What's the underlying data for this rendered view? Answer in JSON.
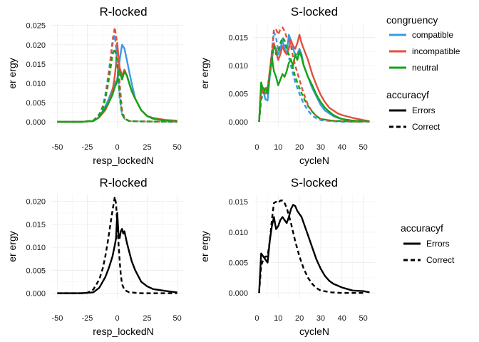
{
  "colors": {
    "compatible": "#3b9ae1",
    "incompatible": "#e2503f",
    "neutral": "#14a314",
    "black": "#000000"
  },
  "legend_top": {
    "congruency_title": "congruency",
    "congruency_items": [
      "compatible",
      "incompatible",
      "neutral"
    ],
    "accuracy_title": "accuracyf",
    "accuracy_items": [
      "Errors",
      "Correct"
    ]
  },
  "legend_bottom": {
    "accuracy_title": "accuracyf",
    "accuracy_items": [
      "Errors",
      "Correct"
    ]
  },
  "chart_data": [
    {
      "type": "line",
      "title": "R-locked",
      "xlabel": "resp_lockedN",
      "ylabel": "er ergy",
      "xlim": [
        -55,
        55
      ],
      "ylim": [
        -0.0013,
        0.0255
      ],
      "xticks": [
        -50,
        -25,
        0,
        25,
        50
      ],
      "yticks": [
        0.0,
        0.005,
        0.01,
        0.015,
        0.02,
        0.025
      ],
      "ytick_labels": [
        "0.000",
        "0.005",
        "0.010",
        "0.015",
        "0.020",
        "0.025"
      ],
      "series": [
        {
          "group": "compatible",
          "accuracy": "Errors",
          "x": [
            -50,
            -30,
            -20,
            -15,
            -10,
            -7,
            -4,
            -2,
            0,
            2,
            4,
            6,
            8,
            10,
            12,
            15,
            20,
            25,
            30,
            40,
            50
          ],
          "y": [
            0,
            0,
            0.0002,
            0.0012,
            0.004,
            0.006,
            0.0085,
            0.01,
            0.011,
            0.016,
            0.02,
            0.019,
            0.016,
            0.013,
            0.01,
            0.006,
            0.003,
            0.0015,
            0.0008,
            0.0003,
            0.0002
          ]
        },
        {
          "group": "incompatible",
          "accuracy": "Errors",
          "x": [
            -50,
            -30,
            -20,
            -15,
            -10,
            -7,
            -4,
            -2,
            -1,
            0,
            1,
            2,
            4,
            6,
            8,
            10,
            12,
            15,
            20,
            25,
            30,
            40,
            50
          ],
          "y": [
            0,
            0,
            0.0002,
            0.0012,
            0.003,
            0.005,
            0.008,
            0.012,
            0.015,
            0.0205,
            0.017,
            0.014,
            0.012,
            0.0135,
            0.012,
            0.01,
            0.008,
            0.006,
            0.003,
            0.0015,
            0.001,
            0.0005,
            0.0003
          ]
        },
        {
          "group": "neutral",
          "accuracy": "Errors",
          "x": [
            -50,
            -30,
            -20,
            -15,
            -10,
            -7,
            -4,
            -2,
            0,
            1,
            2,
            4,
            6,
            8,
            10,
            12,
            15,
            20,
            25,
            30,
            40,
            50
          ],
          "y": [
            0,
            0,
            0.0002,
            0.0012,
            0.0035,
            0.005,
            0.007,
            0.009,
            0.0105,
            0.014,
            0.013,
            0.011,
            0.013,
            0.012,
            0.01,
            0.008,
            0.006,
            0.003,
            0.0015,
            0.0008,
            0.0003,
            0.0001
          ]
        },
        {
          "group": "compatible",
          "accuracy": "Correct",
          "x": [
            -50,
            -30,
            -20,
            -15,
            -12,
            -10,
            -8,
            -6,
            -4,
            -2,
            0,
            2,
            4,
            6,
            10,
            20,
            50
          ],
          "y": [
            0,
            0,
            0.0003,
            0.002,
            0.004,
            0.007,
            0.011,
            0.0155,
            0.02,
            0.0225,
            0.016,
            0.006,
            0.002,
            0.0008,
            0.0002,
            0.0001,
            0
          ]
        },
        {
          "group": "incompatible",
          "accuracy": "Correct",
          "x": [
            -50,
            -30,
            -20,
            -15,
            -12,
            -10,
            -8,
            -6,
            -4,
            -2,
            0,
            2,
            4,
            6,
            10,
            20,
            50
          ],
          "y": [
            0,
            0,
            0.0003,
            0.0018,
            0.004,
            0.006,
            0.01,
            0.015,
            0.021,
            0.0245,
            0.02,
            0.01,
            0.003,
            0.001,
            0.0002,
            0.0001,
            0
          ]
        },
        {
          "group": "neutral",
          "accuracy": "Correct",
          "x": [
            -50,
            -30,
            -20,
            -15,
            -12,
            -10,
            -8,
            -6,
            -4,
            -2,
            0,
            2,
            4,
            6,
            10,
            20,
            50
          ],
          "y": [
            0,
            0,
            0.0003,
            0.0018,
            0.0035,
            0.006,
            0.009,
            0.013,
            0.0175,
            0.019,
            0.015,
            0.007,
            0.002,
            0.0008,
            0.0002,
            0.0001,
            0
          ]
        }
      ]
    },
    {
      "type": "line",
      "title": "S-locked",
      "xlabel": "cycleN",
      "ylabel": "er ergy",
      "xlim": [
        -1.5,
        55.5
      ],
      "ylim": [
        -0.0009,
        0.0175
      ],
      "xticks": [
        0,
        10,
        20,
        30,
        40,
        50
      ],
      "yticks": [
        0.0,
        0.005,
        0.01,
        0.015
      ],
      "ytick_labels": [
        "0.000",
        "0.005",
        "0.010",
        "0.015"
      ],
      "series": [
        {
          "group": "compatible",
          "accuracy": "Errors",
          "x": [
            1,
            2,
            3,
            4,
            5,
            6,
            7,
            8,
            9,
            10,
            11,
            12,
            13,
            14,
            15,
            16,
            17,
            18,
            19,
            20,
            21,
            22,
            24,
            26,
            28,
            30,
            32,
            34,
            36,
            38,
            40,
            45,
            50,
            53
          ],
          "y": [
            0,
            0.006,
            0.0055,
            0.004,
            0.0038,
            0.008,
            0.011,
            0.0135,
            0.013,
            0.012,
            0.013,
            0.0145,
            0.013,
            0.012,
            0.0155,
            0.0145,
            0.013,
            0.012,
            0.012,
            0.013,
            0.012,
            0.01,
            0.008,
            0.006,
            0.0045,
            0.003,
            0.002,
            0.0015,
            0.001,
            0.0007,
            0.0005,
            0.0002,
            0.0001,
            0
          ]
        },
        {
          "group": "incompatible",
          "accuracy": "Errors",
          "x": [
            1,
            2,
            3,
            4,
            5,
            6,
            7,
            8,
            9,
            10,
            11,
            12,
            13,
            14,
            15,
            16,
            17,
            18,
            19,
            20,
            21,
            22,
            24,
            26,
            28,
            30,
            32,
            34,
            36,
            38,
            40,
            42,
            45,
            50,
            53
          ],
          "y": [
            0,
            0.0065,
            0.006,
            0.005,
            0.0055,
            0.009,
            0.012,
            0.014,
            0.0125,
            0.011,
            0.012,
            0.0135,
            0.0125,
            0.012,
            0.013,
            0.0145,
            0.0135,
            0.013,
            0.014,
            0.0155,
            0.014,
            0.013,
            0.011,
            0.0085,
            0.0065,
            0.0048,
            0.0035,
            0.0025,
            0.002,
            0.0015,
            0.0012,
            0.001,
            0.0007,
            0.0003,
            0.0001
          ]
        },
        {
          "group": "neutral",
          "accuracy": "Errors",
          "x": [
            1,
            2,
            3,
            4,
            5,
            6,
            7,
            8,
            9,
            10,
            11,
            12,
            13,
            14,
            15,
            16,
            17,
            18,
            19,
            20,
            21,
            22,
            24,
            26,
            28,
            30,
            32,
            34,
            36,
            38,
            40,
            45,
            50,
            53
          ],
          "y": [
            0,
            0.007,
            0.0055,
            0.006,
            0.005,
            0.0085,
            0.0115,
            0.009,
            0.008,
            0.0065,
            0.0075,
            0.0085,
            0.008,
            0.009,
            0.0105,
            0.011,
            0.01,
            0.012,
            0.011,
            0.0125,
            0.0115,
            0.01,
            0.008,
            0.0065,
            0.0048,
            0.0035,
            0.0025,
            0.0018,
            0.0012,
            0.0008,
            0.0005,
            0.0002,
            0.0001,
            0
          ]
        },
        {
          "group": "compatible",
          "accuracy": "Correct",
          "x": [
            1,
            2,
            3,
            4,
            5,
            6,
            7,
            8,
            9,
            10,
            11,
            12,
            13,
            14,
            15,
            16,
            17,
            18,
            20,
            22,
            24,
            26,
            28,
            30,
            35,
            40,
            50
          ],
          "y": [
            0,
            0.004,
            0.005,
            0.006,
            0.006,
            0.0085,
            0.0125,
            0.016,
            0.015,
            0.0125,
            0.0135,
            0.015,
            0.0135,
            0.013,
            0.0115,
            0.01,
            0.0085,
            0.007,
            0.005,
            0.0032,
            0.002,
            0.0011,
            0.0006,
            0.0003,
            0.0001,
            0,
            0
          ]
        },
        {
          "group": "incompatible",
          "accuracy": "Correct",
          "x": [
            1,
            2,
            3,
            4,
            5,
            6,
            7,
            8,
            9,
            10,
            11,
            12,
            13,
            14,
            15,
            16,
            17,
            18,
            20,
            22,
            24,
            26,
            28,
            30,
            35,
            40,
            50
          ],
          "y": [
            0,
            0.0045,
            0.006,
            0.006,
            0.006,
            0.009,
            0.0125,
            0.0165,
            0.0165,
            0.0155,
            0.0165,
            0.0168,
            0.0162,
            0.015,
            0.0148,
            0.0135,
            0.0115,
            0.01,
            0.0075,
            0.005,
            0.003,
            0.0018,
            0.001,
            0.0005,
            0.0002,
            0.0001,
            0
          ]
        },
        {
          "group": "neutral",
          "accuracy": "Correct",
          "x": [
            1,
            2,
            3,
            4,
            5,
            6,
            7,
            8,
            9,
            10,
            11,
            12,
            13,
            14,
            15,
            16,
            17,
            18,
            20,
            22,
            24,
            26,
            28,
            30,
            35,
            40,
            50
          ],
          "y": [
            0,
            0.004,
            0.005,
            0.006,
            0.006,
            0.008,
            0.0115,
            0.0135,
            0.012,
            0.0125,
            0.014,
            0.015,
            0.0145,
            0.013,
            0.012,
            0.011,
            0.0095,
            0.008,
            0.006,
            0.0042,
            0.0028,
            0.0018,
            0.001,
            0.0005,
            0.0002,
            0.0001,
            0
          ]
        }
      ]
    },
    {
      "type": "line",
      "title": "R-locked",
      "xlabel": "resp_lockedN",
      "ylabel": "er ergy",
      "xlim": [
        -55,
        55
      ],
      "ylim": [
        -0.001,
        0.0215
      ],
      "xticks": [
        -50,
        -25,
        0,
        25,
        50
      ],
      "yticks": [
        0.0,
        0.005,
        0.01,
        0.015,
        0.02
      ],
      "ytick_labels": [
        "0.000",
        "0.005",
        "0.010",
        "0.015",
        "0.020"
      ],
      "series": [
        {
          "group": "all",
          "accuracy": "Errors",
          "x": [
            -50,
            -30,
            -20,
            -15,
            -10,
            -7,
            -4,
            -2,
            -1,
            0,
            1,
            2,
            3,
            4,
            5,
            6,
            8,
            10,
            12,
            15,
            20,
            25,
            30,
            35,
            40,
            50
          ],
          "y": [
            0,
            0,
            0.0002,
            0.0012,
            0.0035,
            0.0055,
            0.008,
            0.0105,
            0.012,
            0.0175,
            0.013,
            0.012,
            0.0135,
            0.014,
            0.013,
            0.0135,
            0.011,
            0.009,
            0.007,
            0.005,
            0.0025,
            0.0015,
            0.0009,
            0.0007,
            0.0005,
            0.0002
          ]
        },
        {
          "group": "all",
          "accuracy": "Correct",
          "x": [
            -50,
            -30,
            -25,
            -20,
            -15,
            -12,
            -10,
            -8,
            -6,
            -4,
            -3,
            -2,
            -1,
            0,
            1,
            2,
            3,
            4,
            6,
            10,
            15,
            20,
            30,
            50
          ],
          "y": [
            0,
            0,
            0.0001,
            0.0008,
            0.003,
            0.0055,
            0.008,
            0.011,
            0.0145,
            0.018,
            0.0195,
            0.021,
            0.0195,
            0.015,
            0.011,
            0.007,
            0.004,
            0.002,
            0.0007,
            0.0002,
            0.0001,
            0,
            0,
            0
          ]
        }
      ]
    },
    {
      "type": "line",
      "title": "S-locked",
      "xlabel": "cycleN",
      "ylabel": "er ergy",
      "xlim": [
        -1.5,
        55.5
      ],
      "ylim": [
        -0.0008,
        0.0162
      ],
      "xticks": [
        0,
        10,
        20,
        30,
        40,
        50
      ],
      "yticks": [
        0.0,
        0.005,
        0.01,
        0.015
      ],
      "ytick_labels": [
        "0.000",
        "0.005",
        "0.010",
        "0.015"
      ],
      "series": [
        {
          "group": "all",
          "accuracy": "Errors",
          "x": [
            1,
            2,
            3,
            4,
            5,
            6,
            7,
            8,
            9,
            10,
            11,
            12,
            13,
            14,
            15,
            16,
            17,
            18,
            19,
            20,
            21,
            22,
            24,
            26,
            28,
            30,
            32,
            34,
            36,
            38,
            40,
            42,
            45,
            50,
            53
          ],
          "y": [
            0,
            0.0065,
            0.006,
            0.0055,
            0.005,
            0.0085,
            0.011,
            0.0125,
            0.0105,
            0.011,
            0.012,
            0.0125,
            0.012,
            0.0115,
            0.0125,
            0.0138,
            0.0145,
            0.0143,
            0.0135,
            0.013,
            0.0125,
            0.0115,
            0.0095,
            0.0075,
            0.0055,
            0.004,
            0.0028,
            0.002,
            0.0015,
            0.0012,
            0.0009,
            0.0007,
            0.0004,
            0.0003,
            0.0001
          ]
        },
        {
          "group": "all",
          "accuracy": "Correct",
          "x": [
            1,
            2,
            3,
            4,
            5,
            6,
            7,
            8,
            9,
            10,
            11,
            12,
            13,
            14,
            15,
            16,
            17,
            18,
            20,
            22,
            24,
            26,
            28,
            30,
            35,
            40,
            50
          ],
          "y": [
            0,
            0.0045,
            0.0055,
            0.006,
            0.006,
            0.0085,
            0.012,
            0.0148,
            0.015,
            0.0148,
            0.0152,
            0.0152,
            0.0148,
            0.014,
            0.0128,
            0.0115,
            0.01,
            0.0085,
            0.006,
            0.004,
            0.0025,
            0.0015,
            0.0008,
            0.0004,
            0.0001,
            0,
            0
          ]
        }
      ]
    }
  ]
}
